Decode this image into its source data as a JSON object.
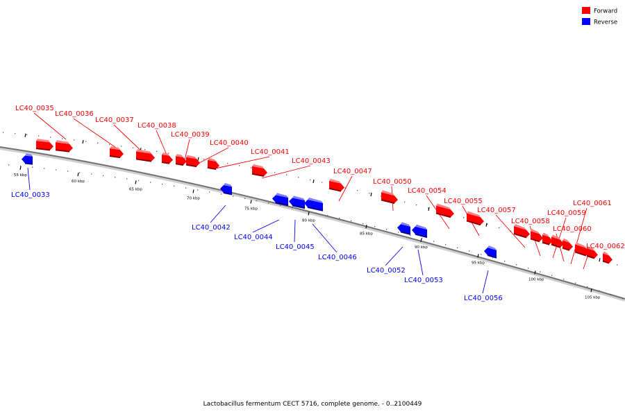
{
  "legend": {
    "forward_label": "Forward",
    "reverse_label": "Reverse",
    "forward_color": "#ff0000",
    "reverse_color": "#0000ff"
  },
  "caption": "Lactobacillus fermentum CECT 5716, complete genome. - 0..2100449",
  "ticks": [
    "55 kbp",
    "60 kbp",
    "65 kbp",
    "70 kbp",
    "75 kbp",
    "80 kbp",
    "85 kbp",
    "90 kbp",
    "95 kbp",
    "100 kbp",
    "105 kbp"
  ],
  "genes_forward": [
    "LC40_0035",
    "LC40_0036",
    "LC40_0037",
    "LC40_0038",
    "LC40_0039",
    "LC40_0040",
    "LC40_0041",
    "LC40_0043",
    "LC40_0047",
    "LC40_0050",
    "LC40_0054",
    "LC40_0055",
    "LC40_0057",
    "LC40_0058",
    "LC40_0059",
    "LC40_0060",
    "LC40_0061",
    "LC40_0062"
  ],
  "genes_reverse": [
    "LC40_0033",
    "LC40_0042",
    "LC40_0044",
    "LC40_0045",
    "LC40_0046",
    "LC40_0052",
    "LC40_0053",
    "LC40_0056"
  ]
}
